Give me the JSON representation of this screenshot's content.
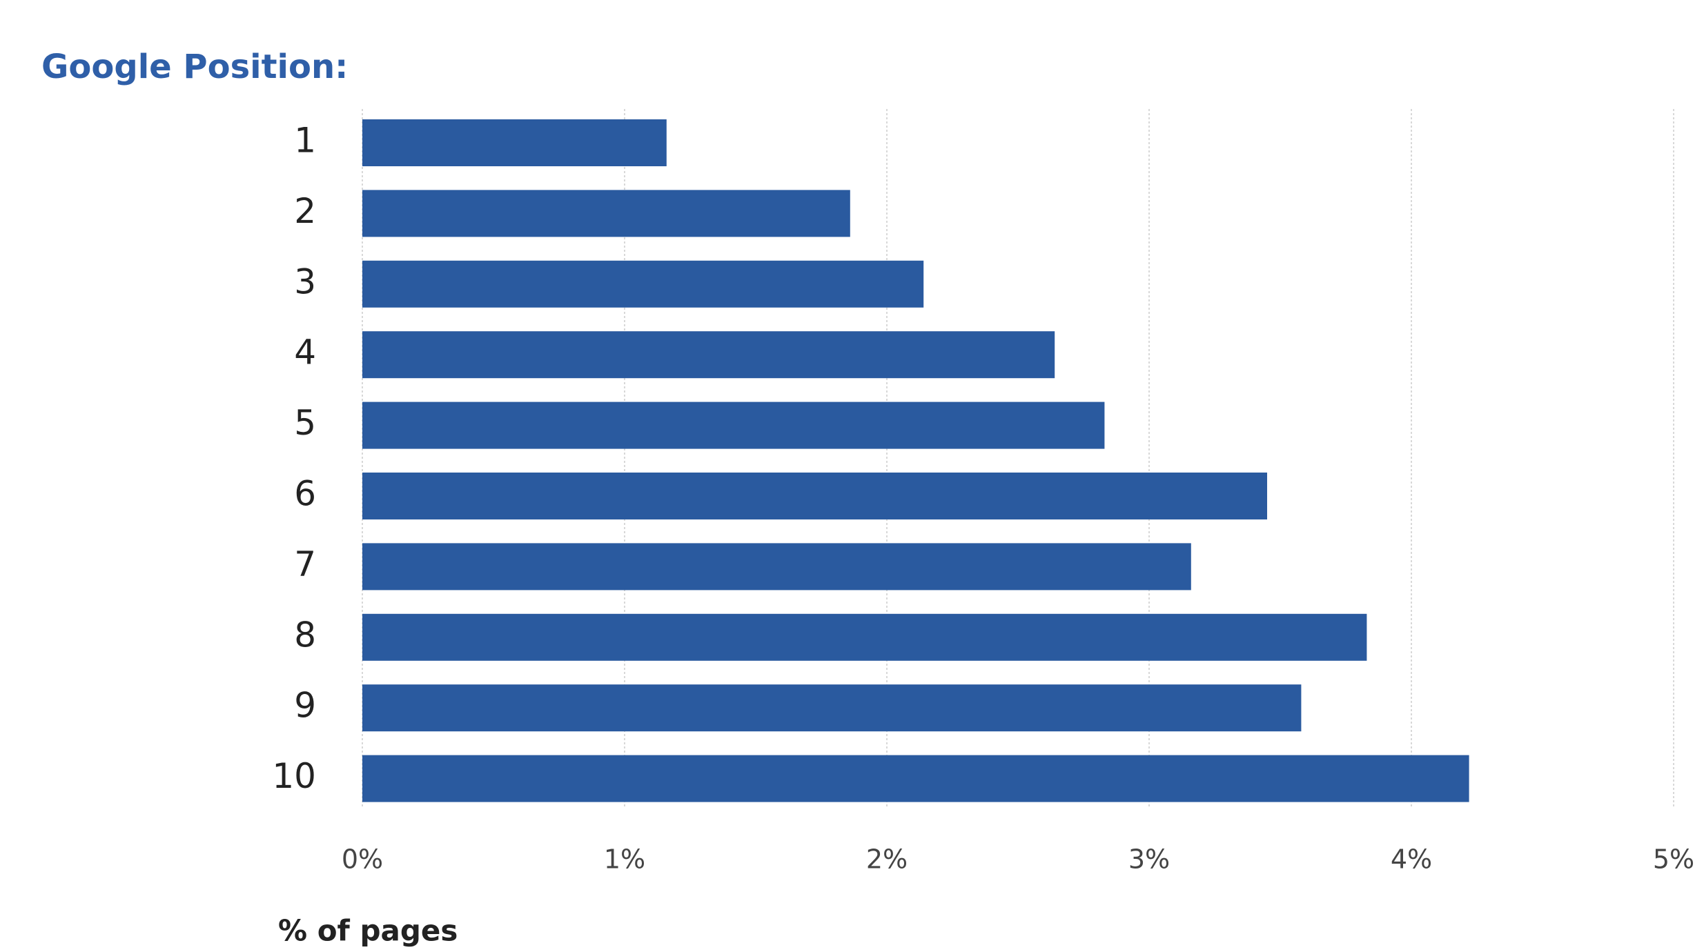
{
  "chart_data": {
    "type": "bar",
    "title": "Google Position:",
    "xlabel": "% of pages",
    "categories": [
      "1",
      "2",
      "3",
      "4",
      "5",
      "6",
      "7",
      "8",
      "9",
      "10"
    ],
    "values": [
      1.16,
      1.86,
      2.14,
      2.64,
      2.83,
      3.45,
      3.16,
      3.83,
      3.58,
      4.22
    ],
    "color": "#2a5a9f",
    "xlim": [
      0,
      5
    ],
    "xticks": [
      {
        "value": 0,
        "label": "0%"
      },
      {
        "value": 1,
        "label": "1%"
      },
      {
        "value": 2,
        "label": "2%"
      },
      {
        "value": 3,
        "label": "3%"
      },
      {
        "value": 4,
        "label": "4%"
      },
      {
        "value": 5,
        "label": "5%"
      }
    ],
    "grid": true
  }
}
